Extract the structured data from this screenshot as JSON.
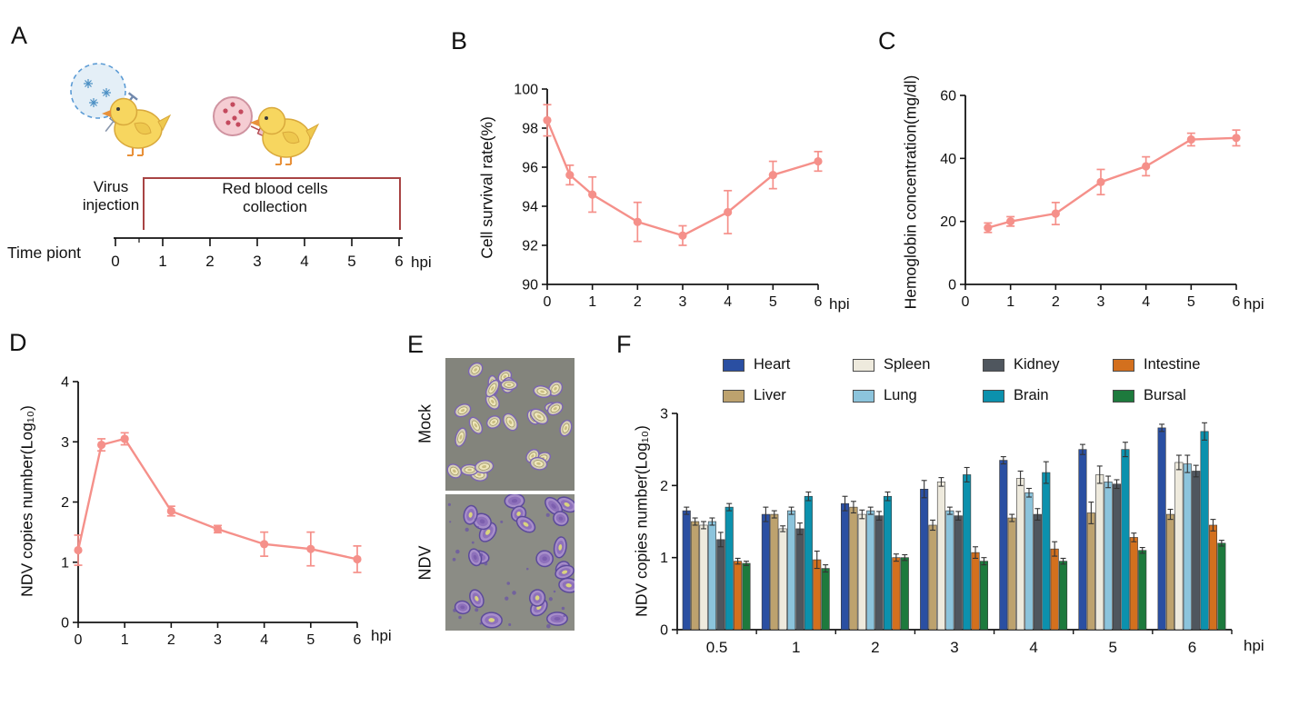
{
  "panels": {
    "a": {
      "label": "A",
      "virus_injection": "Virus\ninjection",
      "rbc_collection": "Red blood cells\ncollection",
      "time_point": "Time piont",
      "ticks": [
        "0",
        "1",
        "2",
        "3",
        "4",
        "5",
        "6"
      ],
      "unit": "hpi"
    },
    "b": {
      "label": "B",
      "unit": "hpi"
    },
    "c": {
      "label": "C",
      "unit": "hpi"
    },
    "d": {
      "label": "D",
      "unit": "hpi"
    },
    "e": {
      "label": "E",
      "mock": "Mock",
      "ndv": "NDV"
    },
    "f": {
      "label": "F",
      "unit": "hpi"
    }
  },
  "chart_data": [
    {
      "id": "b",
      "type": "line",
      "title": "",
      "ylabel": "Cell survival rate(%)",
      "xlabel": "hpi",
      "x": [
        0,
        0.5,
        1,
        2,
        3,
        4,
        5,
        6
      ],
      "values": [
        98.4,
        95.6,
        94.6,
        93.2,
        92.5,
        93.7,
        95.6,
        96.3
      ],
      "errors": [
        0.8,
        0.5,
        0.9,
        1.0,
        0.5,
        1.1,
        0.7,
        0.5
      ],
      "ylim": [
        90,
        100
      ],
      "yticks": [
        90,
        92,
        94,
        96,
        98,
        100
      ],
      "xticks": [
        0,
        1,
        2,
        3,
        4,
        5,
        6
      ],
      "color": "#f5908a",
      "grid": false
    },
    {
      "id": "c",
      "type": "line",
      "title": "",
      "ylabel": "Hemoglobin concentration(mg/dl)",
      "xlabel": "hpi",
      "x": [
        0.5,
        1,
        2,
        3,
        4,
        5,
        6
      ],
      "values": [
        18,
        20,
        22.5,
        32.5,
        37.5,
        46,
        46.5
      ],
      "errors": [
        1.5,
        1.5,
        3.5,
        4,
        3,
        2,
        2.5
      ],
      "ylim": [
        0,
        60
      ],
      "yticks": [
        0,
        20,
        40,
        60
      ],
      "xticks": [
        0,
        1,
        2,
        3,
        4,
        5,
        6
      ],
      "color": "#f5908a",
      "grid": false
    },
    {
      "id": "d",
      "type": "line",
      "title": "",
      "ylabel": "NDV copies number(Log₁₀)",
      "xlabel": "hpi",
      "x": [
        0,
        0.5,
        1,
        2,
        3,
        4,
        5,
        6
      ],
      "values": [
        1.2,
        2.95,
        3.05,
        1.85,
        1.55,
        1.3,
        1.22,
        1.05
      ],
      "errors": [
        0.25,
        0.1,
        0.1,
        0.08,
        0.06,
        0.2,
        0.28,
        0.22
      ],
      "ylim": [
        0,
        4
      ],
      "yticks": [
        0,
        1,
        2,
        3,
        4
      ],
      "xticks": [
        0,
        1,
        2,
        3,
        4,
        5,
        6
      ],
      "color": "#f5908a",
      "grid": false
    },
    {
      "id": "f",
      "type": "bar",
      "title": "",
      "ylabel": "NDV copies number(Log₁₀)",
      "xlabel": "hpi",
      "categories": [
        "0.5",
        "1",
        "2",
        "3",
        "4",
        "5",
        "6"
      ],
      "series": [
        {
          "name": "Heart",
          "color": "#2a4fa2",
          "values": [
            1.65,
            1.6,
            1.75,
            1.95,
            2.35,
            2.5,
            2.8
          ],
          "errors": [
            0.05,
            0.1,
            0.1,
            0.12,
            0.05,
            0.07,
            0.05
          ]
        },
        {
          "name": "Liver",
          "color": "#bda26e",
          "values": [
            1.5,
            1.6,
            1.7,
            1.45,
            1.55,
            1.62,
            1.6
          ],
          "errors": [
            0.05,
            0.05,
            0.08,
            0.07,
            0.05,
            0.15,
            0.07
          ]
        },
        {
          "name": "Spleen",
          "color": "#eeeadd",
          "values": [
            1.45,
            1.4,
            1.6,
            2.05,
            2.1,
            2.15,
            2.32
          ],
          "errors": [
            0.05,
            0.04,
            0.06,
            0.06,
            0.1,
            0.12,
            0.1
          ]
        },
        {
          "name": "Lung",
          "color": "#8cc4dc",
          "values": [
            1.5,
            1.65,
            1.65,
            1.65,
            1.9,
            2.05,
            2.3
          ],
          "errors": [
            0.05,
            0.05,
            0.05,
            0.05,
            0.06,
            0.08,
            0.12
          ]
        },
        {
          "name": "Kidney",
          "color": "#4f565e",
          "values": [
            1.25,
            1.4,
            1.58,
            1.58,
            1.6,
            2.02,
            2.2
          ],
          "errors": [
            0.1,
            0.08,
            0.06,
            0.06,
            0.08,
            0.06,
            0.08
          ]
        },
        {
          "name": "Brain",
          "color": "#0c91ad",
          "values": [
            1.7,
            1.85,
            1.85,
            2.15,
            2.18,
            2.5,
            2.75
          ],
          "errors": [
            0.05,
            0.06,
            0.06,
            0.1,
            0.15,
            0.1,
            0.12
          ]
        },
        {
          "name": "Intestine",
          "color": "#d3701e",
          "values": [
            0.95,
            0.97,
            1.0,
            1.07,
            1.12,
            1.28,
            1.45
          ],
          "errors": [
            0.04,
            0.12,
            0.05,
            0.08,
            0.1,
            0.06,
            0.08
          ]
        },
        {
          "name": "Bursal",
          "color": "#1d7a3d",
          "values": [
            0.92,
            0.85,
            1.0,
            0.95,
            0.95,
            1.1,
            1.2
          ],
          "errors": [
            0.03,
            0.05,
            0.04,
            0.05,
            0.04,
            0.04,
            0.04
          ]
        }
      ],
      "ylim": [
        0,
        3
      ],
      "yticks": [
        0,
        1,
        2,
        3
      ],
      "legend_position": "top",
      "grid": false
    }
  ]
}
